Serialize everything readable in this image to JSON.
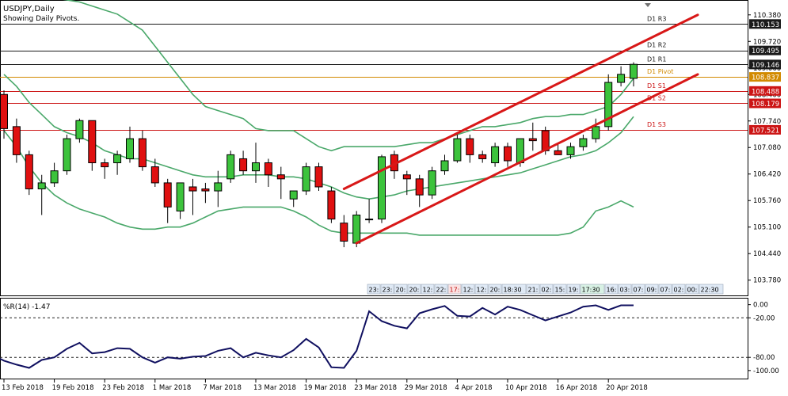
{
  "header": {
    "title": "USDJPY,Daily",
    "subtitle": "Showing Daily Pivots."
  },
  "colors": {
    "bull": "#3cc33c",
    "bear": "#e01010",
    "bands": "#4aa86a",
    "pivotR": "#1a1a1a",
    "pivotP": "#d28a00",
    "pivotS": "#cc1515",
    "channel": "#d81818",
    "wpr": "#101060"
  },
  "chart_data": [
    {
      "type": "candlestick",
      "symbol": "USDJPY",
      "timeframe": "Daily",
      "ylim": [
        103.4,
        110.75
      ],
      "y_ticks": [
        "110.380",
        "109.720",
        "109.060",
        "108.400",
        "107.740",
        "107.080",
        "106.420",
        "105.760",
        "105.100",
        "104.440",
        "103.780"
      ],
      "x_labels": [
        {
          "i": 0,
          "label": "13 Feb 2018"
        },
        {
          "i": 4,
          "label": "19 Feb 2018"
        },
        {
          "i": 8,
          "label": "23 Feb 2018"
        },
        {
          "i": 12,
          "label": "1 Mar 2018"
        },
        {
          "i": 16,
          "label": "7 Mar 2018"
        },
        {
          "i": 20,
          "label": "13 Mar 2018"
        },
        {
          "i": 24,
          "label": "19 Mar 2018"
        },
        {
          "i": 28,
          "label": "23 Mar 2018"
        },
        {
          "i": 32,
          "label": "29 Mar 2018"
        },
        {
          "i": 36,
          "label": "4 Apr 2018"
        },
        {
          "i": 40,
          "label": "10 Apr 2018"
        },
        {
          "i": 44,
          "label": "16 Apr 2018"
        },
        {
          "i": 48,
          "label": "20 Apr 2018"
        }
      ],
      "candles": [
        {
          "o": 108.4,
          "h": 108.5,
          "l": 107.3,
          "c": 107.55
        },
        {
          "o": 107.6,
          "h": 107.8,
          "l": 106.7,
          "c": 106.9
        },
        {
          "o": 106.9,
          "h": 107.0,
          "l": 105.9,
          "c": 106.05
        },
        {
          "o": 106.05,
          "h": 106.4,
          "l": 105.4,
          "c": 106.2
        },
        {
          "o": 106.2,
          "h": 106.7,
          "l": 106.1,
          "c": 106.5
        },
        {
          "o": 106.5,
          "h": 107.4,
          "l": 106.4,
          "c": 107.3
        },
        {
          "o": 107.3,
          "h": 107.8,
          "l": 107.2,
          "c": 107.75
        },
        {
          "o": 107.75,
          "h": 107.75,
          "l": 106.5,
          "c": 106.7
        },
        {
          "o": 106.7,
          "h": 106.8,
          "l": 106.3,
          "c": 106.6
        },
        {
          "o": 106.7,
          "h": 107.0,
          "l": 106.4,
          "c": 106.9
        },
        {
          "o": 106.8,
          "h": 107.6,
          "l": 106.7,
          "c": 107.3
        },
        {
          "o": 107.3,
          "h": 107.5,
          "l": 106.5,
          "c": 106.6
        },
        {
          "o": 106.6,
          "h": 106.8,
          "l": 106.1,
          "c": 106.2
        },
        {
          "o": 106.2,
          "h": 106.3,
          "l": 105.2,
          "c": 105.6
        },
        {
          "o": 105.5,
          "h": 106.2,
          "l": 105.3,
          "c": 106.2
        },
        {
          "o": 106.1,
          "h": 106.3,
          "l": 105.4,
          "c": 106.0
        },
        {
          "o": 106.05,
          "h": 106.2,
          "l": 105.7,
          "c": 106.0
        },
        {
          "o": 106.0,
          "h": 106.5,
          "l": 105.6,
          "c": 106.2
        },
        {
          "o": 106.3,
          "h": 107.0,
          "l": 106.2,
          "c": 106.9
        },
        {
          "o": 106.8,
          "h": 107.0,
          "l": 106.4,
          "c": 106.5
        },
        {
          "o": 106.5,
          "h": 107.2,
          "l": 106.2,
          "c": 106.7
        },
        {
          "o": 106.7,
          "h": 106.8,
          "l": 106.1,
          "c": 106.4
        },
        {
          "o": 106.4,
          "h": 106.6,
          "l": 105.8,
          "c": 106.3
        },
        {
          "o": 105.8,
          "h": 106.0,
          "l": 105.6,
          "c": 106.0
        },
        {
          "o": 106.0,
          "h": 106.7,
          "l": 105.9,
          "c": 106.6
        },
        {
          "o": 106.6,
          "h": 106.7,
          "l": 106.0,
          "c": 106.1
        },
        {
          "o": 106.0,
          "h": 106.1,
          "l": 105.2,
          "c": 105.3
        },
        {
          "o": 105.2,
          "h": 105.4,
          "l": 104.6,
          "c": 104.75
        },
        {
          "o": 104.7,
          "h": 105.5,
          "l": 104.6,
          "c": 105.4
        },
        {
          "o": 105.3,
          "h": 105.8,
          "l": 105.2,
          "c": 105.3
        },
        {
          "o": 105.3,
          "h": 106.9,
          "l": 105.2,
          "c": 106.85
        },
        {
          "o": 106.9,
          "h": 107.0,
          "l": 106.3,
          "c": 106.5
        },
        {
          "o": 106.4,
          "h": 106.5,
          "l": 105.9,
          "c": 106.3
        },
        {
          "o": 106.3,
          "h": 106.4,
          "l": 105.6,
          "c": 105.9
        },
        {
          "o": 105.9,
          "h": 106.6,
          "l": 105.8,
          "c": 106.5
        },
        {
          "o": 106.5,
          "h": 106.9,
          "l": 106.4,
          "c": 106.75
        },
        {
          "o": 106.75,
          "h": 107.4,
          "l": 106.7,
          "c": 107.3
        },
        {
          "o": 107.3,
          "h": 107.4,
          "l": 106.7,
          "c": 106.9
        },
        {
          "o": 106.9,
          "h": 107.0,
          "l": 106.7,
          "c": 106.8
        },
        {
          "o": 106.7,
          "h": 107.2,
          "l": 106.6,
          "c": 107.1
        },
        {
          "o": 107.1,
          "h": 107.2,
          "l": 106.6,
          "c": 106.75
        },
        {
          "o": 106.7,
          "h": 107.3,
          "l": 106.6,
          "c": 107.3
        },
        {
          "o": 107.3,
          "h": 107.7,
          "l": 107.0,
          "c": 107.25
        },
        {
          "o": 107.5,
          "h": 107.6,
          "l": 106.9,
          "c": 107.0
        },
        {
          "o": 107.0,
          "h": 107.2,
          "l": 106.9,
          "c": 106.9
        },
        {
          "o": 106.9,
          "h": 107.2,
          "l": 106.8,
          "c": 107.1
        },
        {
          "o": 107.1,
          "h": 107.4,
          "l": 107.0,
          "c": 107.3
        },
        {
          "o": 107.3,
          "h": 107.8,
          "l": 107.2,
          "c": 107.6
        },
        {
          "o": 107.6,
          "h": 108.9,
          "l": 107.5,
          "c": 108.7
        },
        {
          "o": 108.7,
          "h": 109.1,
          "l": 108.6,
          "c": 108.9
        },
        {
          "o": 108.8,
          "h": 109.2,
          "l": 108.6,
          "c": 109.15
        }
      ],
      "bollinger": {
        "upper": [
          110.8,
          110.9,
          110.9,
          110.85,
          110.8,
          110.75,
          110.7,
          110.6,
          110.5,
          110.4,
          110.2,
          110.0,
          109.6,
          109.2,
          108.8,
          108.4,
          108.1,
          108.0,
          107.9,
          107.8,
          107.55,
          107.5,
          107.5,
          107.5,
          107.3,
          107.1,
          107.0,
          107.1,
          107.1,
          107.1,
          107.1,
          107.1,
          107.15,
          107.2,
          107.2,
          107.3,
          107.4,
          107.5,
          107.6,
          107.6,
          107.65,
          107.7,
          107.8,
          107.85,
          107.85,
          107.9,
          107.9,
          108.0,
          108.1,
          108.4,
          108.8
        ],
        "middle": [
          108.9,
          108.6,
          108.2,
          107.9,
          107.6,
          107.45,
          107.35,
          107.2,
          107.0,
          106.9,
          106.8,
          106.8,
          106.7,
          106.6,
          106.5,
          106.4,
          106.35,
          106.35,
          106.35,
          106.4,
          106.4,
          106.4,
          106.35,
          106.35,
          106.3,
          106.2,
          106.1,
          105.95,
          105.85,
          105.8,
          105.85,
          105.9,
          106.0,
          106.05,
          106.1,
          106.15,
          106.2,
          106.25,
          106.3,
          106.35,
          106.4,
          106.45,
          106.55,
          106.65,
          106.75,
          106.85,
          106.9,
          107.0,
          107.2,
          107.45,
          107.85
        ],
        "lower": [
          107.5,
          107.1,
          106.6,
          106.2,
          105.9,
          105.7,
          105.55,
          105.45,
          105.35,
          105.2,
          105.1,
          105.05,
          105.05,
          105.1,
          105.1,
          105.2,
          105.35,
          105.5,
          105.55,
          105.6,
          105.6,
          105.6,
          105.6,
          105.5,
          105.35,
          105.15,
          105.0,
          104.95,
          104.95,
          104.95,
          104.95,
          104.95,
          104.95,
          104.9,
          104.9,
          104.9,
          104.9,
          104.9,
          104.9,
          104.9,
          104.9,
          104.9,
          104.9,
          104.9,
          104.9,
          104.95,
          105.1,
          105.5,
          105.6,
          105.75,
          105.6
        ]
      },
      "pivots": [
        {
          "label": "D1 R3",
          "value": 110.153,
          "price": "110.153",
          "kind": "R"
        },
        {
          "label": "D1 R2",
          "value": 109.495,
          "price": "109.495",
          "kind": "R"
        },
        {
          "label": "D1 R1",
          "value": 109.146,
          "price": "109.146",
          "kind": "R"
        },
        {
          "label": "D1 Pivot",
          "value": 108.837,
          "price": "108.837",
          "kind": "P"
        },
        {
          "label": "D1 S1",
          "value": 108.488,
          "price": "108.488",
          "kind": "S"
        },
        {
          "label": "D1 S2",
          "value": 108.179,
          "price": "108.179",
          "kind": "S"
        },
        {
          "label": "D1 S3",
          "value": 107.521,
          "price": "107.521",
          "kind": "S"
        }
      ],
      "channel": [
        {
          "from": {
            "i": 27,
            "price": 106.05
          },
          "to": {
            "i": 55.1,
            "price": 110.38
          }
        },
        {
          "from": {
            "i": 28,
            "price": 104.7
          },
          "to": {
            "i": 55.1,
            "price": 108.9
          }
        }
      ],
      "time_strip": [
        "23:",
        "23:",
        "20:",
        "20:",
        "12:",
        "22:",
        "17:",
        "12:",
        "12:",
        "20:",
        "18:30",
        "21:",
        "02:",
        "15:",
        "19:",
        "17:30",
        "16:",
        "03:",
        "07:",
        "09:",
        "07:",
        "02:",
        "00:",
        "22:30"
      ]
    },
    {
      "type": "line",
      "title": "%R(14) -1.47",
      "ylim": [
        -105,
        2
      ],
      "y_ticks": [
        "0.00",
        "-20.00",
        "-80.00",
        "-100.00"
      ],
      "levels": [
        -20,
        -80
      ],
      "values": [
        -85,
        -91,
        -96,
        -84,
        -80,
        -67,
        -58,
        -74,
        -72,
        -66,
        -67,
        -80,
        -88,
        -80,
        -82,
        -79,
        -78,
        -70,
        -66,
        -80,
        -73,
        -77,
        -80,
        -69,
        -52,
        -65,
        -95,
        -96,
        -70,
        -10,
        -25,
        -32,
        -36,
        -13,
        -7,
        -2,
        -17,
        -18,
        -5,
        -15,
        -3,
        -8,
        -16,
        -24,
        -18,
        -12,
        -3,
        -1,
        -8,
        -1,
        -1
      ]
    }
  ]
}
